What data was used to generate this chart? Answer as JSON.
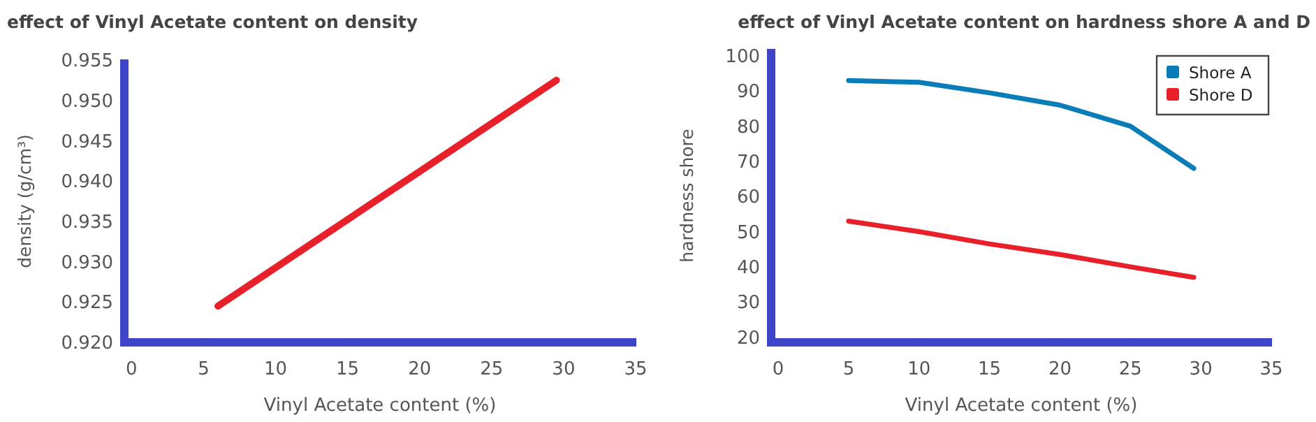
{
  "chart_data": [
    {
      "type": "line",
      "title": "effect of Vinyl Acetate content on density",
      "xlabel": "Vinyl Acetate content (%)",
      "ylabel": "density (g/cm³)",
      "series": [
        {
          "color": "#e8202a",
          "x": [
            6,
            29.5
          ],
          "values": [
            0.9245,
            0.9525
          ]
        }
      ],
      "xlim": [
        -0.5,
        35
      ],
      "xticks": [
        0,
        5,
        10,
        15,
        20,
        25,
        30,
        35
      ],
      "ylim": [
        0.92,
        0.955
      ],
      "yticks": [
        {
          "value": 0.92,
          "label": "0.920"
        },
        {
          "value": 0.925,
          "label": "0.925"
        },
        {
          "value": 0.93,
          "label": "0.930"
        },
        {
          "value": 0.935,
          "label": "0.935"
        },
        {
          "value": 0.94,
          "label": "0.940"
        },
        {
          "value": 0.945,
          "label": "0.945"
        },
        {
          "value": 0.95,
          "label": "0.950"
        },
        {
          "value": 0.955,
          "label": "0.955"
        }
      ],
      "grid": false,
      "legend": false
    },
    {
      "type": "line",
      "title": "effect of Vinyl Acetate content on hardness shore A and D",
      "xlabel": "Vinyl Acetate content (%)",
      "ylabel": "hardness shore",
      "series": [
        {
          "name": "Shore A",
          "color": "#0a7db8",
          "x": [
            5,
            10,
            15,
            20,
            25,
            29.5
          ],
          "values": [
            93,
            92.5,
            89.5,
            86,
            80,
            68
          ]
        },
        {
          "name": "Shore D",
          "color": "#e8202a",
          "x": [
            5,
            10,
            15,
            20,
            25,
            29.5
          ],
          "values": [
            53,
            50,
            46.5,
            43.5,
            40,
            37
          ]
        }
      ],
      "xlim": [
        -0.5,
        35
      ],
      "xticks": [
        0,
        5,
        10,
        15,
        20,
        25,
        30,
        35
      ],
      "ylim": [
        18.5,
        102
      ],
      "yticks": [
        20,
        30,
        40,
        50,
        60,
        70,
        80,
        90,
        100
      ],
      "grid": false,
      "legend": "top right"
    }
  ]
}
